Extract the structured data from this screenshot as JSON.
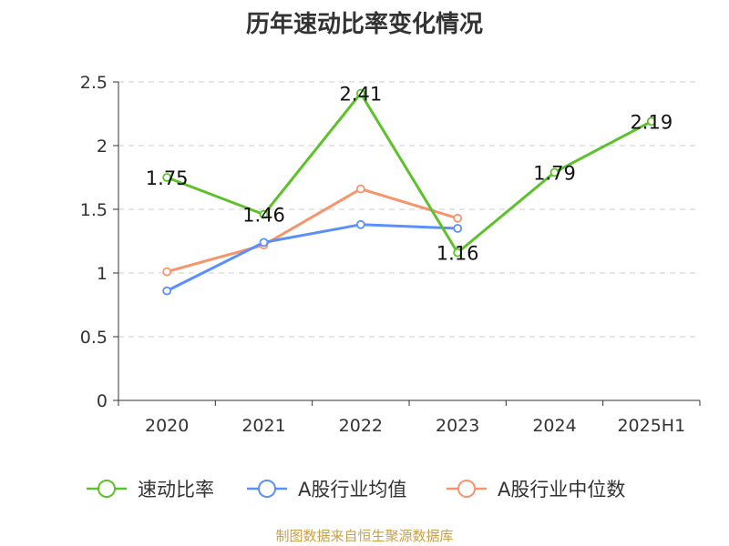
{
  "chart_data": {
    "type": "line",
    "title": "历年速动比率变化情况",
    "categories": [
      "2020",
      "2021",
      "2022",
      "2023",
      "2024",
      "2025H1"
    ],
    "ylim": [
      0,
      2.5
    ],
    "yticks": [
      "0",
      "0.5",
      "1",
      "1.5",
      "2",
      "2.5"
    ],
    "grid": true,
    "legend_position": "bottom",
    "series": [
      {
        "name": "速动比率",
        "color": "#5cc12a",
        "values": [
          1.75,
          1.46,
          2.41,
          1.16,
          1.79,
          2.19
        ],
        "labels": [
          "1.75",
          "1.46",
          "2.41",
          "1.16",
          "1.79",
          "2.19"
        ]
      },
      {
        "name": "A股行业均值",
        "color": "#5b8ff9",
        "values": [
          0.86,
          1.24,
          1.38,
          1.35,
          null,
          null
        ]
      },
      {
        "name": "A股行业中位数",
        "color": "#f6946b",
        "values": [
          1.01,
          1.22,
          1.66,
          1.43,
          null,
          null
        ]
      }
    ]
  },
  "source_note": "制图数据来自恒生聚源数据库"
}
